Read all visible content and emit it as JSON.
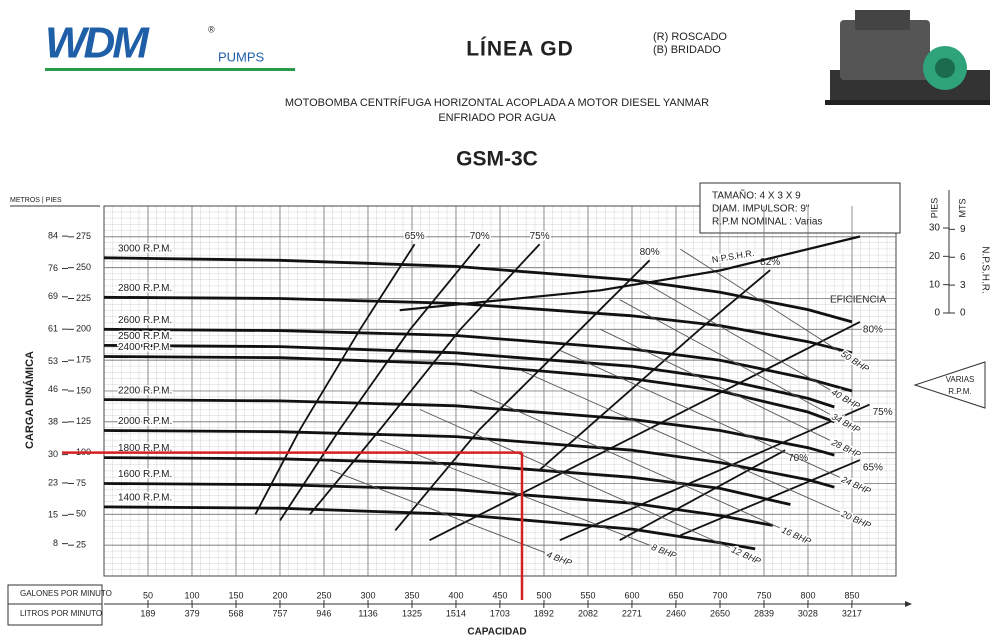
{
  "header": {
    "brand": "WDM",
    "registered": "®",
    "brand_sub": "PUMPS",
    "line": "LÍNEA GD",
    "thread_options": [
      "(R) ROSCADO",
      "(B) BRIDADO"
    ],
    "subtitle_lines": [
      "MOTOBOMBA CENTRÍFUGA HORIZONTAL ACOPLADA A MOTOR DIESEL YANMAR",
      "ENFRIADO POR AGUA"
    ]
  },
  "chart_data": {
    "type": "line",
    "title": "GSM-3C",
    "info": [
      "TAMAÑO: 4 X 3 X 9",
      "DIAM. IMPULSOR: 9\"",
      "R.P.M NOMINAL : Varias"
    ],
    "y_header": "METROS | PIES",
    "ylabel": "CARGA DINÁMICA",
    "xlabel": "CAPACIDAD",
    "x_row_labels": [
      "GALONES POR MINUTO",
      "LITROS POR MINUTO"
    ],
    "y2_headers": [
      "PIES",
      "MTS"
    ],
    "y2label": "N.P.S.H.R.",
    "efficiency_label": "EFICIENCIA",
    "note": [
      "VARIAS",
      "R.P.M."
    ],
    "xlim": [
      0,
      900
    ],
    "xticks": [
      50,
      100,
      150,
      200,
      250,
      300,
      350,
      400,
      450,
      500,
      550,
      600,
      650,
      700,
      750,
      800,
      850
    ],
    "x2lim": [
      0,
      3407
    ],
    "x2ticks": [
      189,
      379,
      568,
      757,
      946,
      1136,
      1325,
      1514,
      1703,
      1892,
      2082,
      2271,
      2460,
      2650,
      2839,
      3028,
      3217
    ],
    "ylim": [
      0,
      300
    ],
    "yticks": [
      25,
      50,
      75,
      100,
      125,
      150,
      175,
      200,
      225,
      250,
      275
    ],
    "ymlim": [
      0,
      91.44
    ],
    "ymticks": [
      8,
      15,
      23,
      30,
      38,
      46,
      53,
      61,
      69,
      76,
      84
    ],
    "y2lim": [
      0,
      30
    ],
    "y2ticks": [
      0,
      10,
      20,
      30
    ],
    "y2mlim": [
      0,
      9.144
    ],
    "y2mticks": [
      0,
      3,
      6,
      9
    ],
    "grid": true,
    "highlight": {
      "x": 475,
      "y": 100,
      "color": "#d42020"
    },
    "series": [
      {
        "name": "3000 R.P.M.",
        "kind": "rpm",
        "color": "#111",
        "x": [
          0,
          200,
          400,
          600,
          700,
          800,
          850
        ],
        "values": [
          258,
          256,
          251,
          240,
          230,
          216,
          206
        ]
      },
      {
        "name": "2800 R.P.M.",
        "kind": "rpm",
        "color": "#111",
        "x": [
          0,
          200,
          400,
          600,
          700,
          800,
          850
        ],
        "values": [
          226,
          225,
          221,
          211,
          203,
          190,
          181
        ]
      },
      {
        "name": "2600 R.P.M.",
        "kind": "rpm",
        "color": "#111",
        "x": [
          0,
          200,
          400,
          600,
          700,
          800,
          850
        ],
        "values": [
          200,
          199,
          195,
          184,
          175,
          160,
          150
        ]
      },
      {
        "name": "2500 R.P.M.",
        "kind": "rpm",
        "color": "#111",
        "x": [
          0,
          200,
          400,
          600,
          700,
          800,
          830
        ],
        "values": [
          187,
          186,
          181,
          170,
          160,
          144,
          137
        ]
      },
      {
        "name": "2400 R.P.M.",
        "kind": "rpm",
        "color": "#111",
        "x": [
          0,
          200,
          400,
          600,
          700,
          800,
          830
        ],
        "values": [
          178,
          177,
          172,
          160,
          150,
          133,
          125
        ]
      },
      {
        "name": "2200 R.P.M.",
        "kind": "rpm",
        "color": "#111",
        "x": [
          0,
          200,
          400,
          600,
          700,
          800,
          830
        ],
        "values": [
          143,
          142,
          138,
          127,
          118,
          104,
          98
        ]
      },
      {
        "name": "2000 R.P.M.",
        "kind": "rpm",
        "color": "#111",
        "x": [
          0,
          200,
          400,
          600,
          700,
          800,
          830
        ],
        "values": [
          118,
          117,
          113,
          102,
          92,
          78,
          72
        ]
      },
      {
        "name": "1800 R.P.M.",
        "kind": "rpm",
        "color": "#111",
        "x": [
          0,
          200,
          400,
          600,
          700,
          780
        ],
        "values": [
          96,
          95,
          91,
          80,
          71,
          58
        ]
      },
      {
        "name": "1600 R.P.M.",
        "kind": "rpm",
        "color": "#111",
        "x": [
          0,
          200,
          400,
          600,
          700,
          760
        ],
        "values": [
          75,
          74,
          70,
          59,
          49,
          41
        ]
      },
      {
        "name": "1400 R.P.M.",
        "kind": "rpm",
        "color": "#111",
        "x": [
          0,
          200,
          400,
          600,
          700,
          740
        ],
        "values": [
          56,
          55,
          50,
          38,
          27,
          22
        ]
      },
      {
        "name": "65%",
        "kind": "efficiency",
        "color": "#111",
        "end_label": "65%",
        "x": [
          172,
          223,
          291,
          353,
          null,
          655,
          859
        ],
        "values": [
          50,
          119,
          200,
          269,
          null,
          33,
          94
        ]
      },
      {
        "name": "70%",
        "kind": "efficiency",
        "color": "#111",
        "end_label": "70%",
        "x": [
          200,
          268,
          348,
          427,
          null,
          586,
          774
        ],
        "values": [
          45,
          119,
          200,
          269,
          null,
          29,
          102
        ]
      },
      {
        "name": "75%",
        "kind": "efficiency",
        "color": "#111",
        "end_label": "75%",
        "x": [
          234,
          314,
          405,
          495,
          null,
          518,
          870
        ],
        "values": [
          50,
          119,
          200,
          269,
          null,
          29,
          139
        ]
      },
      {
        "name": "80%",
        "kind": "efficiency",
        "color": "#111",
        "end_label": "80%",
        "x": [
          331,
          427,
          530,
          620,
          null,
          370,
          859
        ],
        "values": [
          37,
          119,
          192,
          256,
          null,
          29,
          206
        ]
      },
      {
        "name": "82%",
        "kind": "efficiency",
        "color": "#111",
        "x": [
          495,
          586,
          677,
          757
        ],
        "values": [
          86,
          143,
          200,
          248
        ]
      },
      {
        "name": "4 BHP",
        "kind": "bhp",
        "color": "#555",
        "x": [
          257,
          501
        ],
        "values": [
          86,
          19
        ]
      },
      {
        "name": "8 BHP",
        "kind": "bhp",
        "color": "#555",
        "x": [
          314,
          620
        ],
        "values": [
          110,
          25
        ]
      },
      {
        "name": "12 BHP",
        "kind": "bhp",
        "color": "#555",
        "x": [
          359,
          711
        ],
        "values": [
          135,
          23
        ]
      },
      {
        "name": "16 BHP",
        "kind": "bhp",
        "color": "#555",
        "x": [
          416,
          768
        ],
        "values": [
          151,
          39
        ]
      },
      {
        "name": "20 BHP",
        "kind": "bhp",
        "color": "#555",
        "x": [
          473,
          836
        ],
        "values": [
          167,
          52
        ]
      },
      {
        "name": "24 BHP",
        "kind": "bhp",
        "color": "#555",
        "x": [
          518,
          836
        ],
        "values": [
          183,
          80
        ]
      },
      {
        "name": "28 BHP",
        "kind": "bhp",
        "color": "#555",
        "x": [
          564,
          825
        ],
        "values": [
          200,
          110
        ]
      },
      {
        "name": "34 BHP",
        "kind": "bhp",
        "color": "#555",
        "x": [
          586,
          825
        ],
        "values": [
          224,
          131
        ]
      },
      {
        "name": "40 BHP",
        "kind": "bhp",
        "color": "#555",
        "x": [
          609,
          825
        ],
        "values": [
          240,
          151
        ]
      },
      {
        "name": "50 BHP",
        "kind": "bhp",
        "color": "#555",
        "x": [
          655,
          836
        ],
        "values": [
          265,
          182
        ]
      },
      {
        "name": "N.P.S.H.R.",
        "kind": "npsh",
        "axis": "y2",
        "color": "#111",
        "x": [
          336,
          564,
          700,
          859
        ],
        "values": [
          1,
          8,
          15,
          27
        ]
      }
    ]
  }
}
